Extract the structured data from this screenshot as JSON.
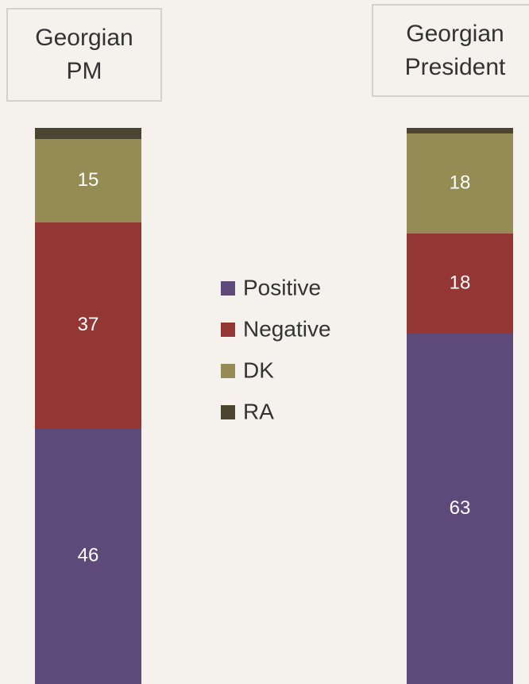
{
  "chart_data": {
    "type": "stacked_bar",
    "categories": [
      "Georgian PM",
      "Georgian President"
    ],
    "series": [
      {
        "name": "Positive",
        "color": "#5e4a7a",
        "values": [
          46,
          63
        ]
      },
      {
        "name": "Negative",
        "color": "#943634",
        "values": [
          37,
          18
        ]
      },
      {
        "name": "DK",
        "color": "#958c55",
        "values": [
          15,
          18
        ]
      },
      {
        "name": "RA",
        "color": "#4a4430",
        "values": [
          2,
          1
        ],
        "labels": false
      }
    ],
    "ylim": [
      0,
      100
    ]
  }
}
